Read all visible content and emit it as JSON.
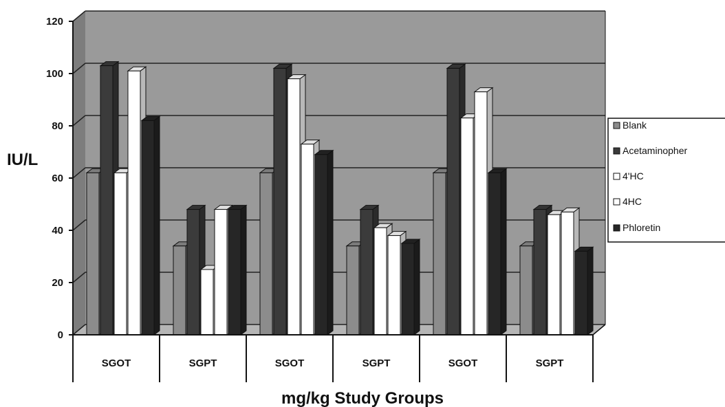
{
  "chart_data": {
    "type": "bar",
    "categories": [
      "SGOT",
      "SGPT",
      "SGOT",
      "SGPT",
      "SGOT",
      "SGPT"
    ],
    "series": [
      {
        "name": "Blank",
        "values": [
          62,
          34,
          62,
          34,
          62,
          34
        ],
        "color": "#8c8c8c"
      },
      {
        "name": "Acetaminophen",
        "values": [
          103,
          48,
          102,
          48,
          102,
          48
        ],
        "color": "#3b3b3b"
      },
      {
        "name": "4'HC",
        "values": [
          62,
          25,
          98,
          41,
          83,
          46
        ],
        "color": "#ffffff"
      },
      {
        "name": "4HC",
        "values": [
          101,
          48,
          73,
          38,
          93,
          47
        ],
        "color": "#ffffff"
      },
      {
        "name": "Phloretin",
        "values": [
          82,
          48,
          69,
          35,
          62,
          32
        ],
        "color": "#262626"
      }
    ],
    "xlabel": "mg/kg Study Groups",
    "ylabel": "IU/L",
    "ylim": [
      0,
      120
    ],
    "yticks": [
      "0",
      "20",
      "40",
      "60",
      "80",
      "100",
      "120"
    ],
    "grid": true,
    "legend_position": "right",
    "legend_labels": [
      "Blank",
      "Acetaminopher",
      "4'HC",
      "4HC",
      "Phloretin"
    ],
    "colors": {
      "wall": "#9a9a9a",
      "floor": "#b5b5b5",
      "gridline": "#222222"
    }
  }
}
